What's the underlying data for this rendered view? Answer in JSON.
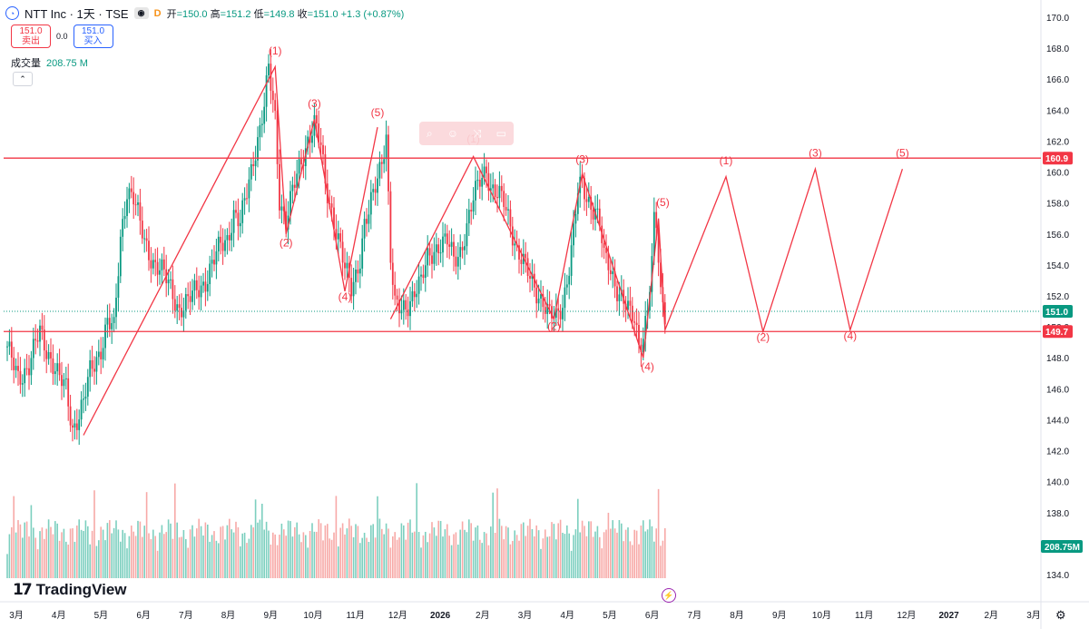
{
  "header": {
    "symbol_title": "NTT Inc · 1天 · TSE",
    "open_label": "开",
    "open": "=150.0",
    "high_label": "高",
    "high": "=151.2",
    "low_label": "低",
    "low": "=149.8",
    "close_label": "收",
    "close": "=151.0",
    "change": "+1.3 (+0.87%)",
    "exchange_badge": "D"
  },
  "trade": {
    "sell_price": "151.0",
    "sell_label": "卖出",
    "spread": "0.0",
    "buy_price": "151.0",
    "buy_label": "买入"
  },
  "volume_indicator": {
    "label": "成交量",
    "value": "208.75 M"
  },
  "toolbar_icons": [
    "search-icon",
    "comment-icon",
    "link-icon",
    "trash-icon"
  ],
  "branding": {
    "logo_mark": "17",
    "name": "TradingView"
  },
  "chart_data": {
    "type": "candlestick",
    "y_axis_ticks": [
      "170.0",
      "168.0",
      "166.0",
      "164.0",
      "162.0",
      "160.0",
      "158.0",
      "156.0",
      "154.0",
      "152.0",
      "150.0",
      "148.0",
      "146.0",
      "144.0",
      "142.0",
      "140.0",
      "138.0",
      "136.0",
      "134.0"
    ],
    "ylim": [
      133.2,
      170.8
    ],
    "x_axis_labels": [
      "3月",
      "4月",
      "5月",
      "6月",
      "7月",
      "8月",
      "9月",
      "10月",
      "11月",
      "12月",
      "2026",
      "2月",
      "3月",
      "4月",
      "5月",
      "6月",
      "7月",
      "8月",
      "9月",
      "10月",
      "11月",
      "12月",
      "2027",
      "2月",
      "3月"
    ],
    "price_tags": {
      "resistance": {
        "value": 160.9,
        "label": "160.9",
        "color": "#f23645"
      },
      "last": {
        "value": 151.0,
        "label": "151.0",
        "color": "#089981"
      },
      "support": {
        "value": 149.7,
        "label": "149.7",
        "color": "#f23645"
      },
      "volume": {
        "label": "208.75M",
        "color": "#089981"
      }
    },
    "colors": {
      "up": "#089981",
      "down": "#f23645",
      "wave": "#f23645",
      "up_vol": "#7ccfbf",
      "down_vol": "#f7a9a7"
    },
    "price_path": [
      [
        0,
        148.4
      ],
      [
        5,
        146.9
      ],
      [
        10,
        147.4
      ],
      [
        15,
        149.7
      ],
      [
        20,
        148.0
      ],
      [
        24,
        146.5
      ],
      [
        27,
        146.0
      ],
      [
        30,
        143.5
      ],
      [
        35,
        145.0
      ],
      [
        38,
        147.0
      ],
      [
        43,
        148.7
      ],
      [
        46,
        150.3
      ],
      [
        49,
        149.7
      ],
      [
        52,
        155.7
      ],
      [
        55,
        159.0
      ],
      [
        58,
        158.3
      ],
      [
        61,
        156.5
      ],
      [
        63,
        155.5
      ],
      [
        67,
        154.3
      ],
      [
        71,
        153.5
      ],
      [
        75,
        152.5
      ],
      [
        79,
        151.2
      ],
      [
        83,
        151.5
      ],
      [
        87,
        152.5
      ],
      [
        91,
        153.0
      ],
      [
        95,
        154.2
      ],
      [
        98,
        155.3
      ],
      [
        101,
        155.8
      ],
      [
        104,
        157.3
      ],
      [
        107,
        156.5
      ],
      [
        110,
        158.7
      ],
      [
        113,
        161.0
      ],
      [
        116,
        162.8
      ],
      [
        118,
        164.2
      ],
      [
        120,
        166.5
      ],
      [
        123,
        163.5
      ],
      [
        125,
        158.4
      ],
      [
        128,
        156.8
      ],
      [
        131,
        158.6
      ],
      [
        134,
        160.2
      ],
      [
        138,
        162.2
      ],
      [
        141,
        163.1
      ],
      [
        144,
        161.5
      ],
      [
        146,
        159.2
      ],
      [
        149,
        157.6
      ],
      [
        152,
        155.7
      ],
      [
        155,
        153.6
      ],
      [
        158,
        152.5
      ],
      [
        160,
        153.5
      ],
      [
        162,
        154.6
      ],
      [
        164,
        156.6
      ],
      [
        166,
        157.2
      ],
      [
        168,
        158.4
      ],
      [
        170,
        159.6
      ],
      [
        172,
        161.0
      ],
      [
        174,
        162.5
      ],
      [
        176,
        154.5
      ],
      [
        178,
        151.2
      ],
      [
        181,
        151.0
      ],
      [
        184,
        151.6
      ],
      [
        187,
        152.4
      ],
      [
        190,
        152.7
      ],
      [
        193,
        154.4
      ],
      [
        196,
        155.1
      ],
      [
        199,
        155.4
      ],
      [
        202,
        155.4
      ],
      [
        205,
        154.3
      ],
      [
        208,
        155.0
      ],
      [
        211,
        156.5
      ],
      [
        214,
        158.1
      ],
      [
        217,
        159.5
      ],
      [
        220,
        160.4
      ],
      [
        222,
        159.0
      ],
      [
        225,
        158.4
      ],
      [
        228,
        158.0
      ],
      [
        231,
        156.8
      ],
      [
        234,
        155.0
      ],
      [
        237,
        154.0
      ],
      [
        240,
        153.1
      ],
      [
        243,
        152.4
      ],
      [
        246,
        151.7
      ],
      [
        249,
        150.6
      ],
      [
        252,
        150.5
      ],
      [
        255,
        151.6
      ],
      [
        258,
        154.0
      ],
      [
        260,
        156.0
      ],
      [
        262,
        158.6
      ],
      [
        264,
        159.2
      ],
      [
        266,
        158.4
      ],
      [
        268,
        158.0
      ],
      [
        270,
        157.6
      ],
      [
        272,
        156.6
      ],
      [
        274,
        154.3
      ],
      [
        276,
        154.0
      ],
      [
        278,
        153.3
      ],
      [
        280,
        152.6
      ],
      [
        282,
        152.0
      ],
      [
        284,
        151.3
      ],
      [
        286,
        150.6
      ],
      [
        288,
        150.4
      ],
      [
        290,
        149.0
      ],
      [
        292,
        149.6
      ],
      [
        294,
        151.3
      ],
      [
        296,
        154.0
      ],
      [
        297,
        156.6
      ],
      [
        298,
        156.4
      ],
      [
        300,
        152.0
      ],
      [
        302,
        151.0
      ]
    ],
    "volume": {
      "max_millions": 800,
      "last_bar_millions": 208.75
    },
    "wave_labels": [
      {
        "text": "(1)",
        "x": 123,
        "y": 167.6
      },
      {
        "text": "(2)",
        "x": 128,
        "y": 155.2
      },
      {
        "text": "(3)",
        "x": 141,
        "y": 164.2
      },
      {
        "text": "(4)",
        "x": 155,
        "y": 151.7
      },
      {
        "text": "(5)",
        "x": 170,
        "y": 163.6
      },
      {
        "text": "(1)",
        "x": 214,
        "y": 161.9
      },
      {
        "text": "(2)",
        "x": 251,
        "y": 149.8
      },
      {
        "text": "(3)",
        "x": 264,
        "y": 160.6
      },
      {
        "text": "(4)",
        "x": 294,
        "y": 147.2
      },
      {
        "text": "(5)",
        "x": 301,
        "y": 157.8
      },
      {
        "text": "(1)",
        "x": 330,
        "y": 160.5
      },
      {
        "text": "(2)",
        "x": 347,
        "y": 149.1
      },
      {
        "text": "(3)",
        "x": 371,
        "y": 161.0
      },
      {
        "text": "(4)",
        "x": 387,
        "y": 149.2
      },
      {
        "text": "(5)",
        "x": 411,
        "y": 161.0
      }
    ]
  }
}
